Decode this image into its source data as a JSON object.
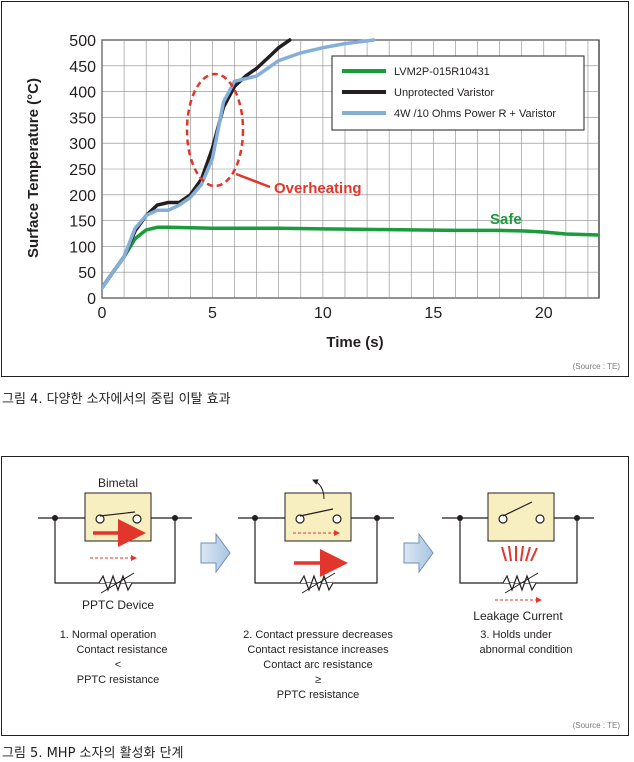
{
  "figure4": {
    "caption": "그림 4. 다양한 소자에서의 중립 이탈 효과",
    "source": "(Source : TE)",
    "annotation_overheating": "Overheating",
    "annotation_safe": "Safe",
    "colors": {
      "green": "#1a9b3c",
      "black": "#231f20",
      "blue": "#84afd8",
      "red": "#e2352b"
    },
    "chart_data": {
      "type": "line",
      "title": "",
      "xlabel": "Time (s)",
      "ylabel": "Surface Temperature (°C)",
      "xlim": [
        0,
        22.5
      ],
      "ylim": [
        0,
        500
      ],
      "xticks": [
        0,
        5,
        10,
        15,
        20
      ],
      "yticks": [
        0,
        50,
        100,
        150,
        200,
        250,
        300,
        350,
        400,
        450,
        500
      ],
      "grid": true,
      "legend_position": "top-right",
      "series": [
        {
          "name": "LVM2P-015R10431",
          "color": "#1a9b3c",
          "x": [
            0,
            0.5,
            1,
            1.5,
            2,
            2.5,
            3,
            4,
            5,
            6,
            8,
            10,
            12,
            14,
            16,
            18,
            19,
            20,
            21,
            22.5
          ],
          "y": [
            20,
            50,
            80,
            115,
            132,
            137,
            137,
            136,
            135,
            135,
            135,
            134,
            133,
            132,
            131,
            131,
            130,
            128,
            124,
            122
          ]
        },
        {
          "name": "Unprotected Varistor",
          "color": "#231f20",
          "x": [
            0,
            0.5,
            1,
            1.5,
            2,
            2.5,
            3,
            3.5,
            4,
            4.5,
            5,
            5.5,
            6,
            6.5,
            7,
            7.5,
            8,
            8.5
          ],
          "y": [
            20,
            50,
            80,
            130,
            160,
            180,
            185,
            185,
            200,
            230,
            290,
            370,
            410,
            430,
            445,
            465,
            485,
            500
          ]
        },
        {
          "name": "4W /10 Ohms Power R + Varistor",
          "color": "#84afd8",
          "x": [
            0,
            0.5,
            1,
            1.5,
            2,
            2.5,
            3,
            3.5,
            4,
            4.5,
            5,
            5.5,
            6,
            7,
            8,
            9,
            10,
            11,
            12.3
          ],
          "y": [
            20,
            50,
            80,
            135,
            160,
            170,
            170,
            180,
            195,
            220,
            270,
            380,
            420,
            430,
            460,
            475,
            485,
            493,
            500
          ]
        }
      ]
    }
  },
  "figure5": {
    "caption": "그림 5. MHP 소자의 활성화 단계",
    "source": "(Source : TE)",
    "bimetal_label": "Bimetal",
    "ptc_label": "PPTC Device",
    "leakage_label": "Leakage Current",
    "step1": {
      "line1": "1. Normal operation",
      "line2": "Contact resistance",
      "line3": "<",
      "line4": "PPTC resistance"
    },
    "step2": {
      "line1": "2. Contact pressure decreases",
      "line2": "Contact resistance increases",
      "line3": "Contact arc resistance",
      "line4": "≥",
      "line5": "PPTC resistance"
    },
    "step3": {
      "line1": "3. Holds under",
      "line2": "abnormal condition"
    }
  }
}
